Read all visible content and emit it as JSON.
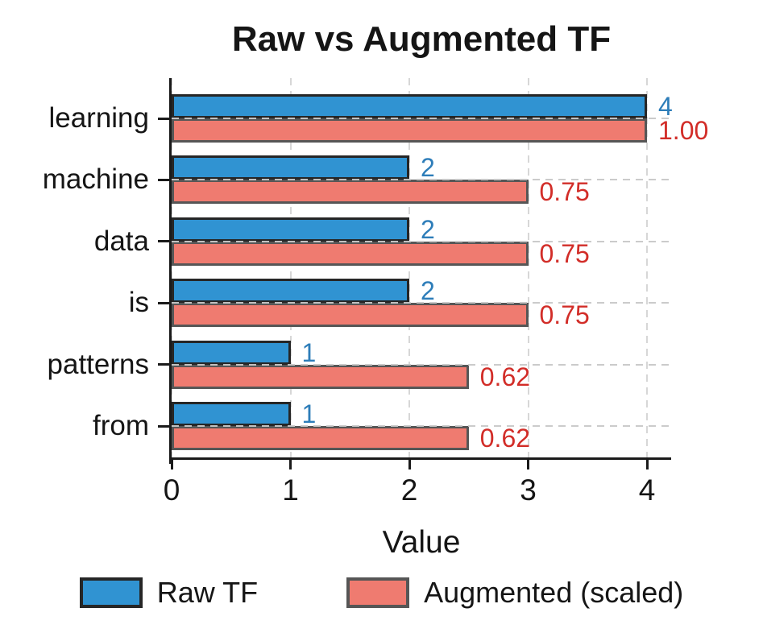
{
  "chart_data": {
    "type": "bar",
    "orientation": "horizontal",
    "title": "Raw vs Augmented TF",
    "xlabel": "Value",
    "categories": [
      "learning",
      "machine",
      "data",
      "is",
      "patterns",
      "from"
    ],
    "series": [
      {
        "name": "Raw TF",
        "color": "#3093d2",
        "edge_color": "#262626",
        "label_color": "#2d7db9",
        "values": [
          4,
          2,
          2,
          2,
          1,
          1
        ],
        "bar_labels": [
          "4",
          "2",
          "2",
          "2",
          "1",
          "1"
        ]
      },
      {
        "name": "Augmented (scaled)",
        "color": "#ef7b70",
        "edge_color": "#565656",
        "label_color": "#d22d28",
        "values": [
          1.0,
          0.75,
          0.75,
          0.75,
          0.62,
          0.62
        ],
        "plotted_lengths": [
          4,
          3,
          3,
          3,
          2.5,
          2.5
        ],
        "bar_labels": [
          "1.00",
          "0.75",
          "0.75",
          "0.75",
          "0.62",
          "0.62"
        ]
      }
    ],
    "xlim": [
      0,
      4.2
    ],
    "xticks": [
      0,
      1,
      2,
      3,
      4
    ],
    "grid": {
      "style": "dashed",
      "color": "#d7d7d7"
    },
    "legend_position": "bottom"
  }
}
